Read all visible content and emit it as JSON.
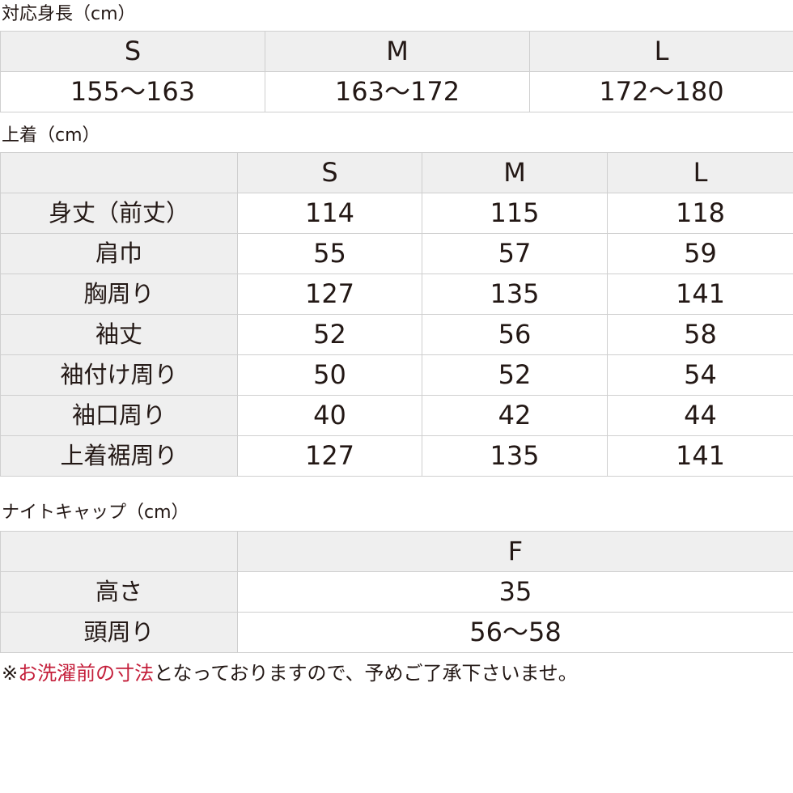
{
  "height_table": {
    "title": "対応身長（cm）",
    "headers": [
      "S",
      "M",
      "L"
    ],
    "values": [
      "155〜163",
      "163〜172",
      "172〜180"
    ]
  },
  "top_table": {
    "title": "上着（cm）",
    "headers": [
      "",
      "S",
      "M",
      "L"
    ],
    "rows": [
      {
        "label": "身丈（前丈）",
        "values": [
          "114",
          "115",
          "118"
        ]
      },
      {
        "label": "肩巾",
        "values": [
          "55",
          "57",
          "59"
        ]
      },
      {
        "label": "胸周り",
        "values": [
          "127",
          "135",
          "141"
        ]
      },
      {
        "label": "袖丈",
        "values": [
          "52",
          "56",
          "58"
        ]
      },
      {
        "label": "袖付け周り",
        "values": [
          "50",
          "52",
          "54"
        ]
      },
      {
        "label": "袖口周り",
        "values": [
          "40",
          "42",
          "44"
        ]
      },
      {
        "label": "上着裾周り",
        "values": [
          "127",
          "135",
          "141"
        ]
      }
    ]
  },
  "cap_table": {
    "title": "ナイトキャップ（cm）",
    "header": "F",
    "rows": [
      {
        "label": "高さ",
        "value": "35"
      },
      {
        "label": "頭周り",
        "value": "56〜58"
      }
    ]
  },
  "note": {
    "prefix": "※",
    "highlight": "お洗濯前の寸法",
    "rest": "となっておりますので、予めご了承下さいませ。",
    "highlight_color": "#c41e3a"
  }
}
